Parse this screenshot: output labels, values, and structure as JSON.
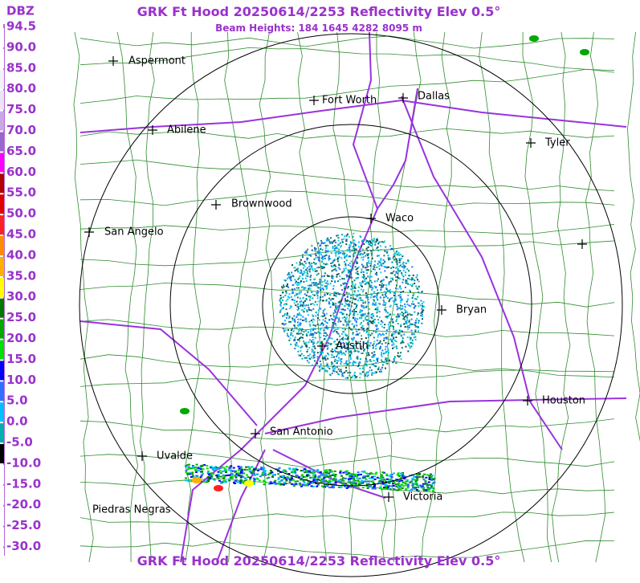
{
  "title": "GRK Ft Hood 20250614/2253 Reflectivity Elev 0.5°",
  "subtitle": "Beam Heights: 184 1645 4282 8095 m",
  "footer": "GRK Ft Hood 20250614/2253 Reflectivity Elev 0.5°",
  "scale": {
    "unit": "DBZ",
    "levels": [
      {
        "label": "94.5",
        "color": "#ffffff"
      },
      {
        "label": "90.0",
        "color": "#ffffff"
      },
      {
        "label": "85.0",
        "color": "#f4f0fa"
      },
      {
        "label": "80.0",
        "color": "#ece4f6"
      },
      {
        "label": "75.0",
        "color": "#c8a8e8"
      },
      {
        "label": "70.0",
        "color": "#9966cc"
      },
      {
        "label": "65.0",
        "color": "#ff00ff"
      },
      {
        "label": "60.0",
        "color": "#b00000"
      },
      {
        "label": "55.0",
        "color": "#e00000"
      },
      {
        "label": "50.0",
        "color": "#ff2020"
      },
      {
        "label": "45.0",
        "color": "#ff8c00"
      },
      {
        "label": "40.0",
        "color": "#ffb000"
      },
      {
        "label": "35.0",
        "color": "#ffff00"
      },
      {
        "label": "30.0",
        "color": "#007800"
      },
      {
        "label": "25.0",
        "color": "#00a800"
      },
      {
        "label": "20.0",
        "color": "#00e000"
      },
      {
        "label": "15.0",
        "color": "#0000ff"
      },
      {
        "label": "10.0",
        "color": "#3070ff"
      },
      {
        "label": "5.0",
        "color": "#00bfff"
      },
      {
        "label": "0.0",
        "color": "#00b0b0"
      },
      {
        "label": "-5.0",
        "color": "#000000"
      },
      {
        "label": "-10.0",
        "color": "#ffffff"
      },
      {
        "label": "-15.0",
        "color": "#ffffff"
      },
      {
        "label": "-20.0",
        "color": "#ffffff"
      },
      {
        "label": "-25.0",
        "color": "#ffffff"
      },
      {
        "label": "-30.0",
        "color": "#ffffff"
      }
    ]
  },
  "cities": [
    "Aspermont",
    "Abilene",
    "Fort Worth",
    "Dallas",
    "Tyler",
    "Brownwood",
    "Waco",
    "San Angelo",
    "Bryan",
    "Austin",
    "Houston",
    "San Antonio",
    "Uvalde",
    "Victoria",
    "Piedras Negras"
  ]
}
